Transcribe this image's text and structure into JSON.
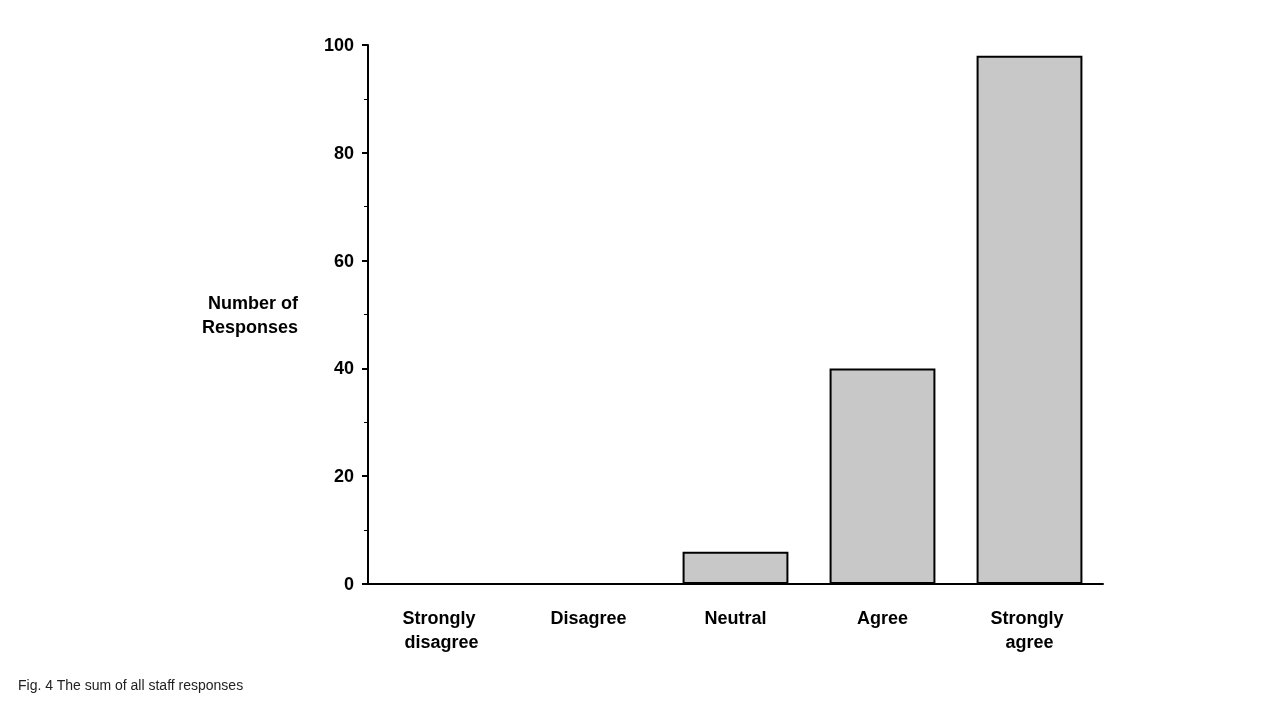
{
  "chart_data": {
    "type": "bar",
    "categories": [
      "Strongly disagree",
      "Disagree",
      "Neutral",
      "Agree",
      "Strongly agree"
    ],
    "values": [
      0,
      0,
      6,
      40,
      98
    ],
    "color": "#c8c8c8",
    "ylabel": "Number of Responses",
    "ylim": [
      0,
      100
    ],
    "yticks": [
      0,
      20,
      40,
      60,
      80,
      100
    ],
    "grid": false,
    "annotations": [
      "Fig. 4 The sum of all staff responses"
    ]
  }
}
